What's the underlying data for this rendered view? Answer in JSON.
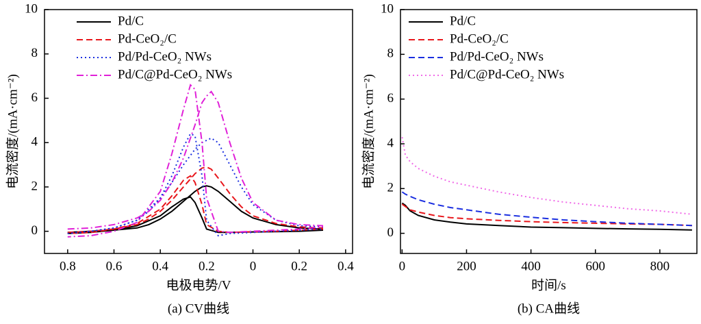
{
  "chart_data": [
    {
      "type": "line",
      "title": "(a) CV曲线",
      "xlabel": "电极电势/V",
      "ylabel": "电流密度/(mA·cm⁻²)",
      "xlim": [
        0.9,
        -0.43
      ],
      "ylim": [
        -1,
        10
      ],
      "xticks": [
        0.8,
        0.6,
        0.4,
        0.2,
        0,
        {
          "value": -0.2,
          "label": "0.2"
        },
        {
          "value": -0.4,
          "label": "0.4"
        }
      ],
      "yticks": [
        0,
        2,
        4,
        6,
        8,
        10
      ],
      "legend": "upper left",
      "series": [
        {
          "name": "Pd/C",
          "color": "#000000",
          "dash": "solid",
          "x": [
            0.8,
            0.7,
            0.6,
            0.5,
            0.45,
            0.4,
            0.35,
            0.3,
            0.25,
            0.22,
            0.2,
            0.18,
            0.15,
            0.1,
            0.05,
            0,
            -0.1,
            -0.2,
            -0.3,
            -0.3,
            -0.2,
            -0.1,
            0,
            0.1,
            0.15,
            0.2,
            0.22,
            0.25,
            0.27,
            0.3,
            0.35,
            0.4,
            0.5,
            0.6,
            0.7,
            0.8
          ],
          "values": [
            -0.05,
            0,
            0.05,
            0.15,
            0.3,
            0.55,
            0.9,
            1.35,
            1.8,
            2.0,
            2.05,
            2.0,
            1.8,
            1.35,
            0.9,
            0.6,
            0.3,
            0.15,
            0.1,
            0.05,
            0,
            -0.02,
            -0.03,
            -0.05,
            -0.05,
            0.1,
            0.6,
            1.3,
            1.55,
            1.45,
            1.1,
            0.7,
            0.25,
            0.05,
            -0.05,
            -0.1
          ]
        },
        {
          "name": "Pd-CeO₂/C",
          "color": "#e8161b",
          "dash": "dashed",
          "x": [
            0.8,
            0.7,
            0.6,
            0.5,
            0.45,
            0.4,
            0.35,
            0.3,
            0.25,
            0.22,
            0.2,
            0.18,
            0.15,
            0.1,
            0.05,
            0,
            -0.1,
            -0.2,
            -0.3,
            -0.3,
            -0.2,
            -0.1,
            0,
            0.1,
            0.15,
            0.2,
            0.22,
            0.25,
            0.27,
            0.3,
            0.35,
            0.4,
            0.5,
            0.6,
            0.7,
            0.8
          ],
          "values": [
            -0.05,
            0,
            0.1,
            0.3,
            0.55,
            0.9,
            1.4,
            2.0,
            2.6,
            2.85,
            2.9,
            2.8,
            2.4,
            1.7,
            1.1,
            0.7,
            0.35,
            0.2,
            0.15,
            0.1,
            0.05,
            0,
            -0.02,
            -0.05,
            0,
            0.3,
            1.2,
            2.2,
            2.5,
            2.3,
            1.6,
            1.0,
            0.35,
            0.1,
            -0.05,
            -0.1
          ]
        },
        {
          "name": "Pd/Pd-CeO₂ NWs",
          "color": "#1a2ee0",
          "dash": "dotted",
          "x": [
            0.8,
            0.7,
            0.6,
            0.5,
            0.45,
            0.4,
            0.35,
            0.3,
            0.25,
            0.22,
            0.2,
            0.18,
            0.15,
            0.1,
            0.05,
            0,
            -0.1,
            -0.2,
            -0.3,
            -0.3,
            -0.2,
            -0.1,
            0,
            0.1,
            0.15,
            0.2,
            0.22,
            0.25,
            0.27,
            0.3,
            0.35,
            0.4,
            0.5,
            0.6,
            0.7,
            0.8
          ],
          "values": [
            -0.1,
            0,
            0.15,
            0.5,
            0.9,
            1.5,
            2.2,
            3.0,
            3.7,
            4.0,
            4.1,
            4.2,
            4.0,
            3.0,
            2.0,
            1.2,
            0.5,
            0.25,
            0.2,
            0.1,
            0.05,
            0,
            -0.05,
            -0.1,
            -0.2,
            0.5,
            2.5,
            4.3,
            4.4,
            3.8,
            2.5,
            1.5,
            0.5,
            0.15,
            0,
            -0.1
          ]
        },
        {
          "name": "Pd/C@Pd-CeO₂ NWs",
          "color": "#e020d8",
          "dash": "dashdot",
          "x": [
            0.8,
            0.7,
            0.6,
            0.5,
            0.45,
            0.4,
            0.35,
            0.3,
            0.25,
            0.22,
            0.2,
            0.18,
            0.15,
            0.1,
            0.05,
            0,
            -0.1,
            -0.2,
            -0.3,
            -0.3,
            -0.2,
            -0.1,
            0,
            0.1,
            0.15,
            0.2,
            0.22,
            0.25,
            0.27,
            0.3,
            0.35,
            0.4,
            0.5,
            0.6,
            0.7,
            0.8
          ],
          "values": [
            0.1,
            0.15,
            0.3,
            0.6,
            0.9,
            1.4,
            2.2,
            3.3,
            4.8,
            5.8,
            6.1,
            6.3,
            5.8,
            4.0,
            2.4,
            1.3,
            0.5,
            0.3,
            0.25,
            0.2,
            0.1,
            0.05,
            0,
            -0.05,
            0,
            1.5,
            4.0,
            6.4,
            6.6,
            5.5,
            3.5,
            1.8,
            0.4,
            0,
            -0.2,
            -0.25
          ]
        }
      ]
    },
    {
      "type": "line",
      "title": "(b) CA曲线",
      "xlabel": "时间/s",
      "ylabel": "电流密度/(mA·cm⁻²)",
      "xlim": [
        -5,
        915
      ],
      "ylim": [
        -0.9,
        10
      ],
      "xticks": [
        0,
        200,
        400,
        600,
        800
      ],
      "yticks": [
        0,
        2,
        4,
        6,
        8,
        10
      ],
      "legend": "upper left",
      "x": [
        0,
        10,
        25,
        50,
        100,
        150,
        200,
        300,
        400,
        500,
        600,
        700,
        800,
        900
      ],
      "series": [
        {
          "name": "Pd/C",
          "color": "#000000",
          "dash": "solid",
          "values": [
            1.35,
            1.25,
            1.0,
            0.8,
            0.6,
            0.5,
            0.42,
            0.35,
            0.28,
            0.25,
            0.22,
            0.2,
            0.18,
            0.15
          ]
        },
        {
          "name": "Pd-CeO₂/C",
          "color": "#e8161b",
          "dash": "dashed",
          "values": [
            1.3,
            1.2,
            1.05,
            0.95,
            0.8,
            0.7,
            0.65,
            0.58,
            0.52,
            0.48,
            0.45,
            0.42,
            0.4,
            0.35
          ]
        },
        {
          "name": "Pd/Pd-CeO₂ NWs",
          "color": "#1a2ee0",
          "dash": "dashed",
          "values": [
            1.85,
            1.75,
            1.65,
            1.5,
            1.3,
            1.15,
            1.05,
            0.85,
            0.72,
            0.6,
            0.52,
            0.45,
            0.4,
            0.35
          ]
        },
        {
          "name": "Pd/C@Pd-CeO₂ NWs",
          "color": "#f06ae8",
          "dash": "dotted",
          "values": [
            4.3,
            3.5,
            3.2,
            2.9,
            2.55,
            2.3,
            2.15,
            1.85,
            1.6,
            1.4,
            1.25,
            1.1,
            1.0,
            0.85
          ]
        }
      ]
    }
  ]
}
